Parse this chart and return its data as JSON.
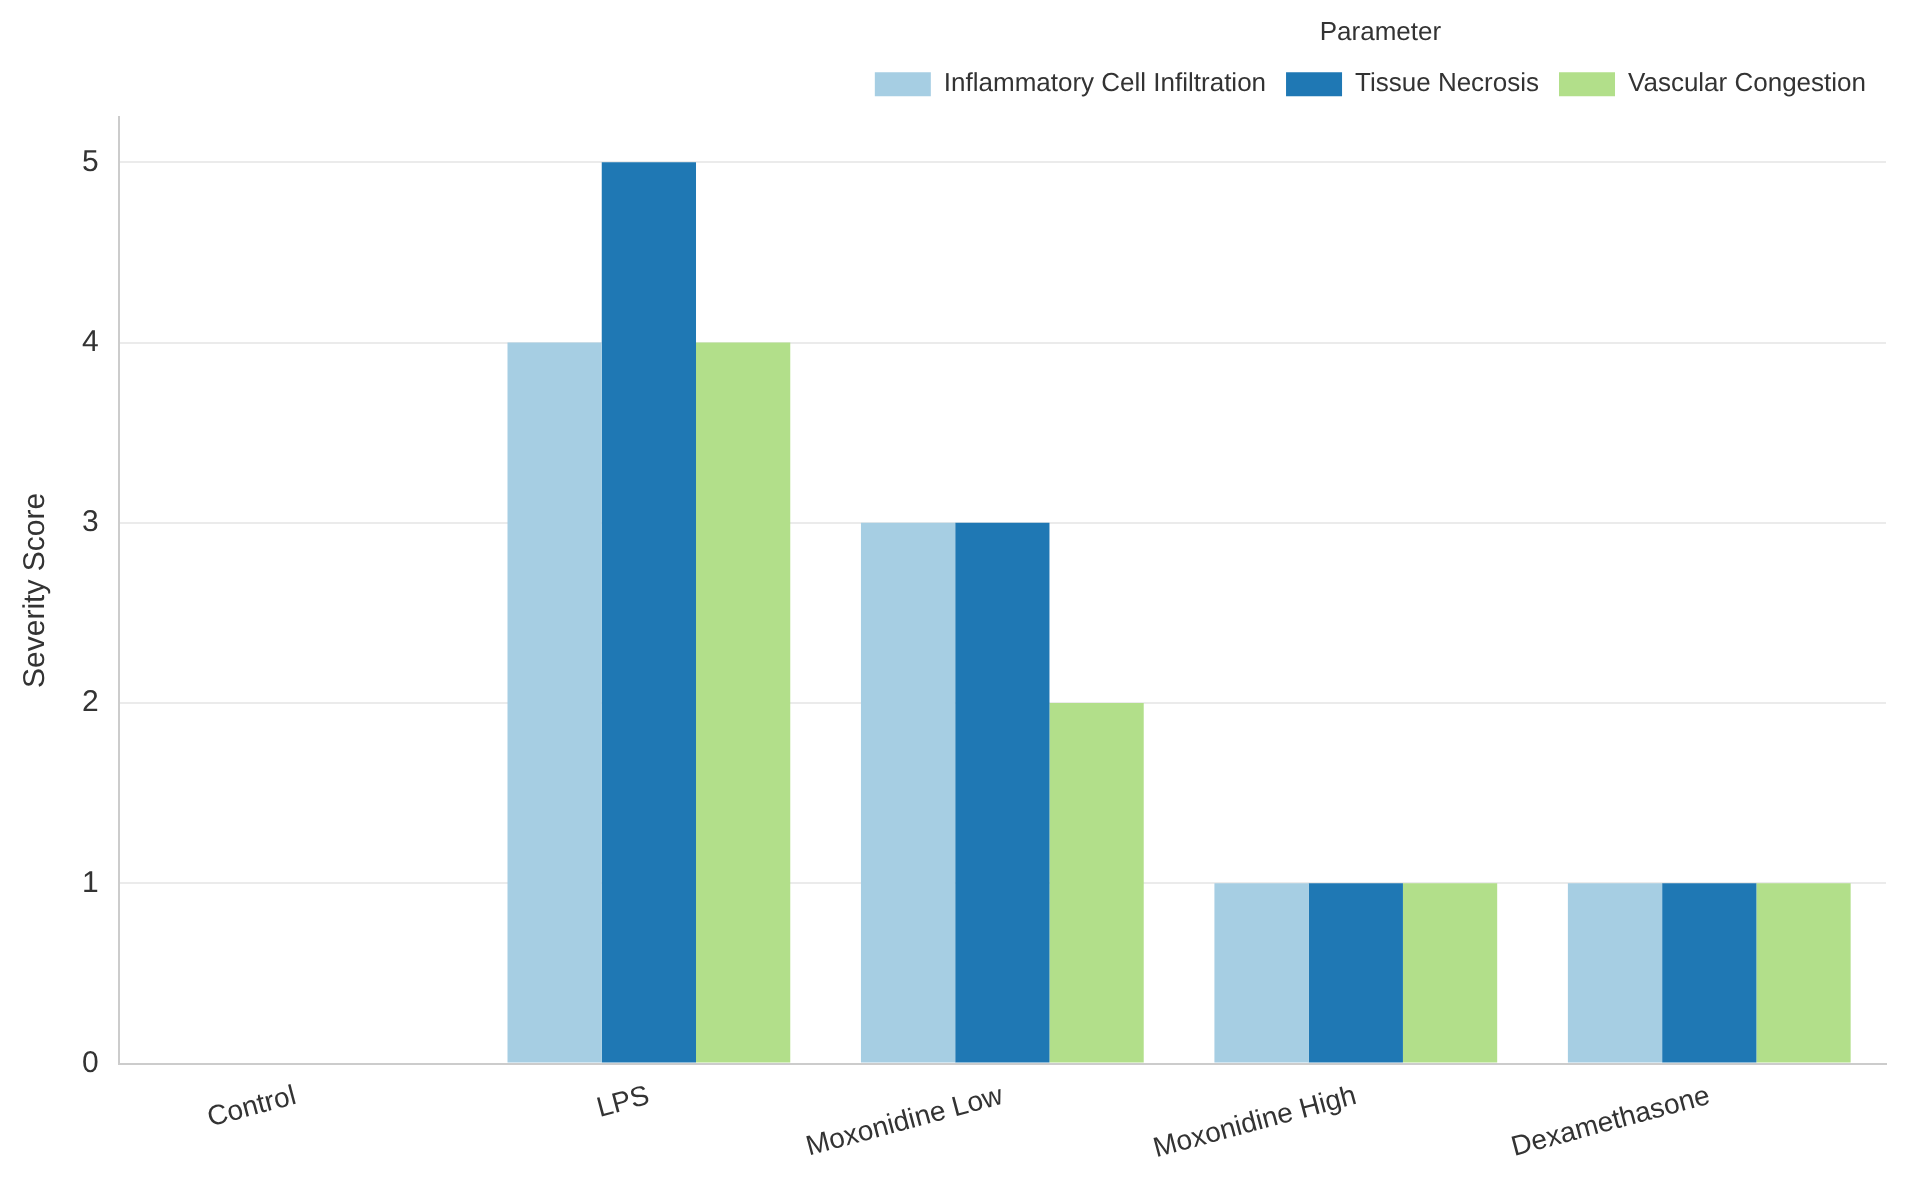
{
  "chart_data": {
    "type": "bar",
    "ylabel": "Severity Score",
    "legend_title": "Parameter",
    "categories": [
      "Control",
      "LPS",
      "Moxonidine Low",
      "Moxonidine High",
      "Dexamethasone"
    ],
    "series": [
      {
        "name": "Inflammatory Cell Infiltration",
        "color": "#a6cee3",
        "values": [
          0,
          4,
          3,
          1,
          1
        ]
      },
      {
        "name": "Tissue Necrosis",
        "color": "#1f78b4",
        "values": [
          0,
          5,
          3,
          1,
          1
        ]
      },
      {
        "name": "Vascular Congestion",
        "color": "#b2df8a",
        "values": [
          0,
          4,
          2,
          1,
          1
        ]
      }
    ],
    "ylim": [
      0,
      5.25
    ],
    "yticks": [
      0,
      1,
      2,
      3,
      4,
      5
    ],
    "grid": "y",
    "legend": "top right"
  }
}
